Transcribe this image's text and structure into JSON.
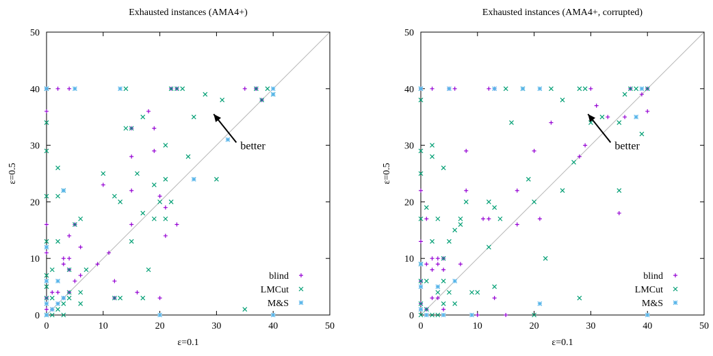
{
  "chart_data": [
    {
      "type": "scatter",
      "title": "Exhausted instances (AMA4+)",
      "xlabel": "ε=0.1",
      "ylabel": "ε=0.5",
      "xlim": [
        0,
        50
      ],
      "ylim": [
        0,
        50
      ],
      "xticks": [
        "0",
        "10",
        "20",
        "30",
        "40",
        "50"
      ],
      "yticks": [
        "0",
        "10",
        "20",
        "30",
        "40",
        "50"
      ],
      "diagonal": true,
      "grid": false,
      "legend_position": "bottom-right",
      "annotation": {
        "text": "better",
        "arrow_to": [
          29.5,
          35.5
        ],
        "arrow_from": [
          33.5,
          30.5
        ]
      },
      "series": [
        {
          "name": "blind",
          "marker": "plus",
          "color": "#9400d3",
          "points": [
            [
              0,
              40
            ],
            [
              0,
              36
            ],
            [
              0,
              16
            ],
            [
              0,
              11
            ],
            [
              0,
              3
            ],
            [
              0,
              1
            ],
            [
              1,
              4
            ],
            [
              2,
              2
            ],
            [
              2,
              4
            ],
            [
              2,
              40
            ],
            [
              3,
              10
            ],
            [
              3,
              3
            ],
            [
              3,
              9
            ],
            [
              4,
              10
            ],
            [
              4,
              8
            ],
            [
              4,
              4
            ],
            [
              4,
              14
            ],
            [
              4,
              40
            ],
            [
              5,
              6
            ],
            [
              5,
              16
            ],
            [
              6,
              12
            ],
            [
              6,
              7
            ],
            [
              9,
              9
            ],
            [
              10,
              23
            ],
            [
              11,
              11
            ],
            [
              12,
              6
            ],
            [
              12,
              3
            ],
            [
              15,
              33
            ],
            [
              15,
              28
            ],
            [
              15,
              16
            ],
            [
              18,
              36
            ],
            [
              19,
              29
            ],
            [
              19,
              33
            ],
            [
              20,
              21
            ],
            [
              21,
              14
            ],
            [
              21,
              19
            ],
            [
              23,
              16
            ],
            [
              23,
              40
            ],
            [
              35,
              40
            ],
            [
              37,
              40
            ],
            [
              37,
              40
            ],
            [
              38,
              38
            ],
            [
              1,
              1
            ],
            [
              16,
              4
            ],
            [
              15,
              22
            ],
            [
              22,
              40
            ],
            [
              20,
              3
            ]
          ]
        },
        {
          "name": "LMCut",
          "marker": "cross",
          "color": "#009e73",
          "points": [
            [
              0,
              40
            ],
            [
              0,
              34
            ],
            [
              0,
              29
            ],
            [
              0,
              21
            ],
            [
              0,
              13
            ],
            [
              0,
              7
            ],
            [
              0,
              5
            ],
            [
              0,
              3
            ],
            [
              0,
              0
            ],
            [
              1,
              8
            ],
            [
              1,
              3
            ],
            [
              1,
              0
            ],
            [
              2,
              26
            ],
            [
              2,
              21
            ],
            [
              2,
              13
            ],
            [
              2,
              1
            ],
            [
              3,
              22
            ],
            [
              3,
              2
            ],
            [
              3,
              0
            ],
            [
              4,
              8
            ],
            [
              4,
              3
            ],
            [
              4,
              4
            ],
            [
              5,
              16
            ],
            [
              6,
              17
            ],
            [
              6,
              4
            ],
            [
              6,
              2
            ],
            [
              7,
              8
            ],
            [
              10,
              25
            ],
            [
              12,
              21
            ],
            [
              12,
              3
            ],
            [
              13,
              20
            ],
            [
              13,
              3
            ],
            [
              14,
              33
            ],
            [
              14,
              40
            ],
            [
              15,
              13
            ],
            [
              15,
              33
            ],
            [
              16,
              25
            ],
            [
              17,
              35
            ],
            [
              17,
              18
            ],
            [
              17,
              3
            ],
            [
              18,
              8
            ],
            [
              19,
              23
            ],
            [
              19,
              17
            ],
            [
              20,
              20
            ],
            [
              21,
              30
            ],
            [
              21,
              24
            ],
            [
              21,
              17
            ],
            [
              22,
              40
            ],
            [
              23,
              40
            ],
            [
              24,
              40
            ],
            [
              25,
              28
            ],
            [
              26,
              35
            ],
            [
              28,
              39
            ],
            [
              30,
              24
            ],
            [
              31,
              38
            ],
            [
              35,
              1
            ],
            [
              37,
              40
            ],
            [
              38,
              38
            ],
            [
              39,
              40
            ],
            [
              40,
              39
            ],
            [
              22,
              20
            ]
          ]
        },
        {
          "name": "M&S",
          "marker": "star",
          "color": "#56b4e9",
          "points": [
            [
              0,
              40
            ],
            [
              0,
              12
            ],
            [
              0,
              6
            ],
            [
              0,
              2
            ],
            [
              0,
              0
            ],
            [
              1,
              1
            ],
            [
              3,
              22
            ],
            [
              5,
              40
            ],
            [
              13,
              40
            ],
            [
              20,
              0
            ],
            [
              26,
              24
            ],
            [
              32,
              31
            ],
            [
              40,
              40
            ],
            [
              40,
              0
            ],
            [
              40,
              39
            ],
            [
              2,
              6
            ],
            [
              2,
              2
            ],
            [
              3,
              3
            ]
          ]
        }
      ]
    },
    {
      "type": "scatter",
      "title": "Exhausted instances (AMA4+, corrupted)",
      "xlabel": "ε=0.1",
      "ylabel": "ε=0.5",
      "xlim": [
        0,
        50
      ],
      "ylim": [
        0,
        50
      ],
      "xticks": [
        "0",
        "10",
        "20",
        "30",
        "40",
        "50"
      ],
      "yticks": [
        "0",
        "10",
        "20",
        "30",
        "40",
        "50"
      ],
      "diagonal": true,
      "grid": false,
      "legend_position": "bottom-right",
      "annotation": {
        "text": "better",
        "arrow_to": [
          29.5,
          35.5
        ],
        "arrow_from": [
          33.5,
          30.5
        ]
      },
      "series": [
        {
          "name": "blind",
          "marker": "plus",
          "color": "#9400d3",
          "points": [
            [
              0,
              40
            ],
            [
              0,
              22
            ],
            [
              0,
              13
            ],
            [
              0,
              6
            ],
            [
              0,
              2
            ],
            [
              1,
              17
            ],
            [
              1,
              9
            ],
            [
              1,
              1
            ],
            [
              2,
              10
            ],
            [
              2,
              8
            ],
            [
              2,
              3
            ],
            [
              3,
              10
            ],
            [
              3,
              9
            ],
            [
              3,
              3
            ],
            [
              4,
              10
            ],
            [
              4,
              8
            ],
            [
              4,
              1
            ],
            [
              5,
              40
            ],
            [
              6,
              40
            ],
            [
              7,
              9
            ],
            [
              8,
              29
            ],
            [
              8,
              22
            ],
            [
              10,
              0
            ],
            [
              11,
              17
            ],
            [
              12,
              17
            ],
            [
              12,
              40
            ],
            [
              13,
              40
            ],
            [
              13,
              3
            ],
            [
              15,
              0
            ],
            [
              17,
              16
            ],
            [
              17,
              22
            ],
            [
              20,
              29
            ],
            [
              21,
              17
            ],
            [
              23,
              34
            ],
            [
              28,
              28
            ],
            [
              29,
              30
            ],
            [
              30,
              40
            ],
            [
              31,
              37
            ],
            [
              33,
              35
            ],
            [
              35,
              18
            ],
            [
              36,
              35
            ],
            [
              37,
              40
            ],
            [
              40,
              40
            ],
            [
              40,
              36
            ],
            [
              39,
              39
            ],
            [
              2,
              40
            ]
          ]
        },
        {
          "name": "LMCut",
          "marker": "cross",
          "color": "#009e73",
          "points": [
            [
              0,
              40
            ],
            [
              0,
              38
            ],
            [
              0,
              29
            ],
            [
              0,
              25
            ],
            [
              0,
              17
            ],
            [
              0,
              9
            ],
            [
              0,
              6
            ],
            [
              0,
              2
            ],
            [
              0,
              0
            ],
            [
              1,
              19
            ],
            [
              1,
              6
            ],
            [
              1,
              1
            ],
            [
              2,
              30
            ],
            [
              2,
              28
            ],
            [
              2,
              13
            ],
            [
              2,
              0
            ],
            [
              3,
              17
            ],
            [
              3,
              4
            ],
            [
              3,
              0
            ],
            [
              4,
              26
            ],
            [
              4,
              10
            ],
            [
              4,
              6
            ],
            [
              4,
              2
            ],
            [
              5,
              13
            ],
            [
              5,
              4
            ],
            [
              6,
              15
            ],
            [
              6,
              2
            ],
            [
              7,
              17
            ],
            [
              8,
              20
            ],
            [
              9,
              4
            ],
            [
              10,
              4
            ],
            [
              12,
              20
            ],
            [
              12,
              12
            ],
            [
              13,
              19
            ],
            [
              13,
              5
            ],
            [
              14,
              17
            ],
            [
              15,
              40
            ],
            [
              16,
              34
            ],
            [
              18,
              40
            ],
            [
              19,
              24
            ],
            [
              20,
              20
            ],
            [
              20,
              0
            ],
            [
              22,
              10
            ],
            [
              23,
              40
            ],
            [
              25,
              22
            ],
            [
              25,
              38
            ],
            [
              27,
              27
            ],
            [
              28,
              40
            ],
            [
              28,
              3
            ],
            [
              29,
              40
            ],
            [
              30,
              34
            ],
            [
              32,
              35
            ],
            [
              35,
              34
            ],
            [
              35,
              22
            ],
            [
              36,
              39
            ],
            [
              37,
              40
            ],
            [
              38,
              40
            ],
            [
              39,
              32
            ],
            [
              40,
              40
            ],
            [
              7,
              16
            ]
          ]
        },
        {
          "name": "M&S",
          "marker": "star",
          "color": "#56b4e9",
          "points": [
            [
              0,
              40
            ],
            [
              0,
              9
            ],
            [
              0,
              5
            ],
            [
              0,
              1
            ],
            [
              1,
              0
            ],
            [
              3,
              5
            ],
            [
              4,
              0
            ],
            [
              5,
              40
            ],
            [
              6,
              6
            ],
            [
              9,
              0
            ],
            [
              13,
              40
            ],
            [
              18,
              40
            ],
            [
              21,
              2
            ],
            [
              21,
              40
            ],
            [
              39,
              40
            ],
            [
              40,
              0
            ],
            [
              38,
              35
            ]
          ]
        }
      ]
    }
  ]
}
